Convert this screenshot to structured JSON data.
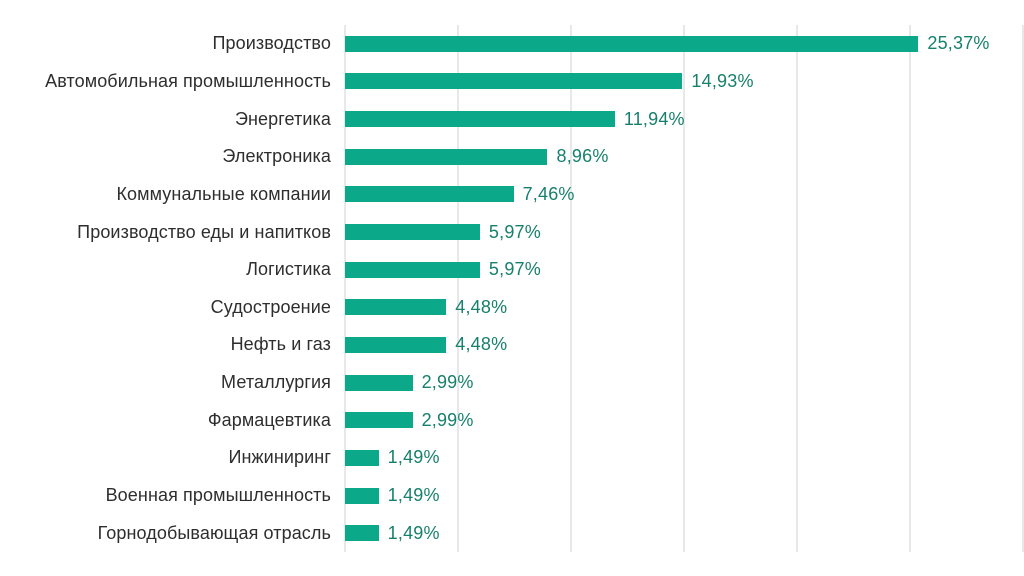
{
  "chart_data": {
    "type": "bar",
    "orientation": "horizontal",
    "title": "",
    "xlabel": "",
    "ylabel": "",
    "legend": "none",
    "grid": "vertical-only",
    "xlim": [
      0,
      30
    ],
    "gridline_step": 5,
    "categories": [
      "Производство",
      "Автомобильная промышленность",
      "Энергетика",
      "Электроника",
      "Коммунальные компании",
      "Производство еды и напитков",
      "Логистика",
      "Судостроение",
      "Нефть и газ",
      "Металлургия",
      "Фармацевтика",
      "Инжиниринг",
      "Военная промышленность",
      "Горнодобывающая отрасль"
    ],
    "values": [
      25.37,
      14.93,
      11.94,
      8.96,
      7.46,
      5.97,
      5.97,
      4.48,
      4.48,
      2.99,
      2.99,
      1.49,
      1.49,
      1.49
    ],
    "value_labels": [
      "25,37%",
      "14,93%",
      "11,94%",
      "8,96%",
      "7,46%",
      "5,97%",
      "5,97%",
      "4,48%",
      "4,48%",
      "2,99%",
      "2,99%",
      "1,49%",
      "1,49%",
      "1,49%"
    ],
    "colors": {
      "bar": "#0ba88a",
      "value_text": "#17806d",
      "label_text": "#2e2e2e",
      "gridline": "#e8e8e8",
      "background": "#ffffff"
    }
  }
}
